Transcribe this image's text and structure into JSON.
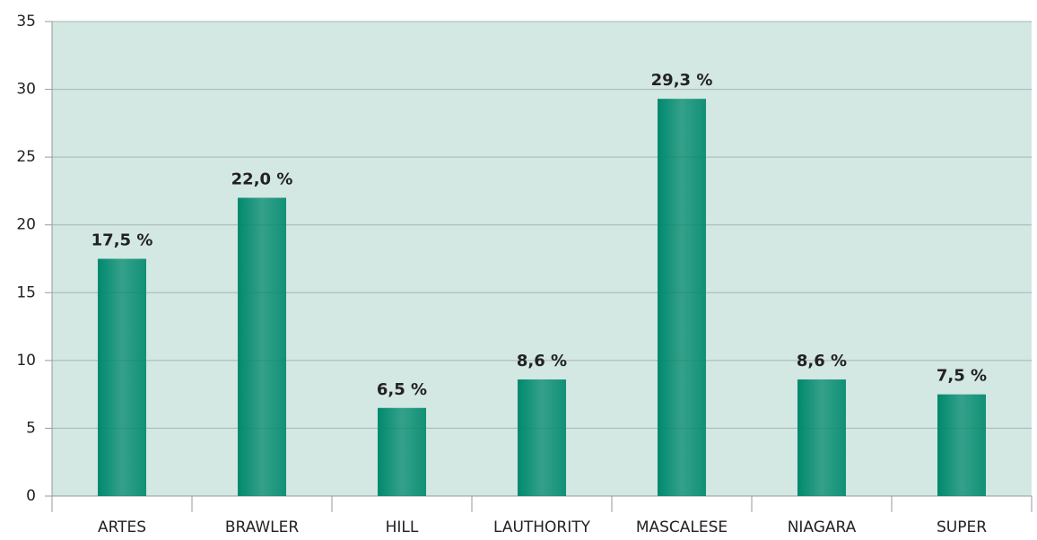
{
  "chart_data": {
    "type": "bar",
    "categories": [
      "ARTES",
      "BRAWLER",
      "HILL",
      "LAUTHORITY",
      "MASCALESE",
      "NIAGARA",
      "SUPER"
    ],
    "values": [
      17.5,
      22.0,
      6.5,
      8.6,
      29.3,
      8.6,
      7.5
    ],
    "value_labels": [
      "17,5 %",
      "22,0 %",
      "6,5 %",
      "8,6 %",
      "29,3 %",
      "8,6 %",
      "7,5 %"
    ],
    "color": "#00896d",
    "background": "#d3e7e3",
    "ylim": [
      0,
      35
    ],
    "yticks": [
      0,
      5,
      10,
      15,
      20,
      25,
      30,
      35
    ],
    "grid": true
  }
}
